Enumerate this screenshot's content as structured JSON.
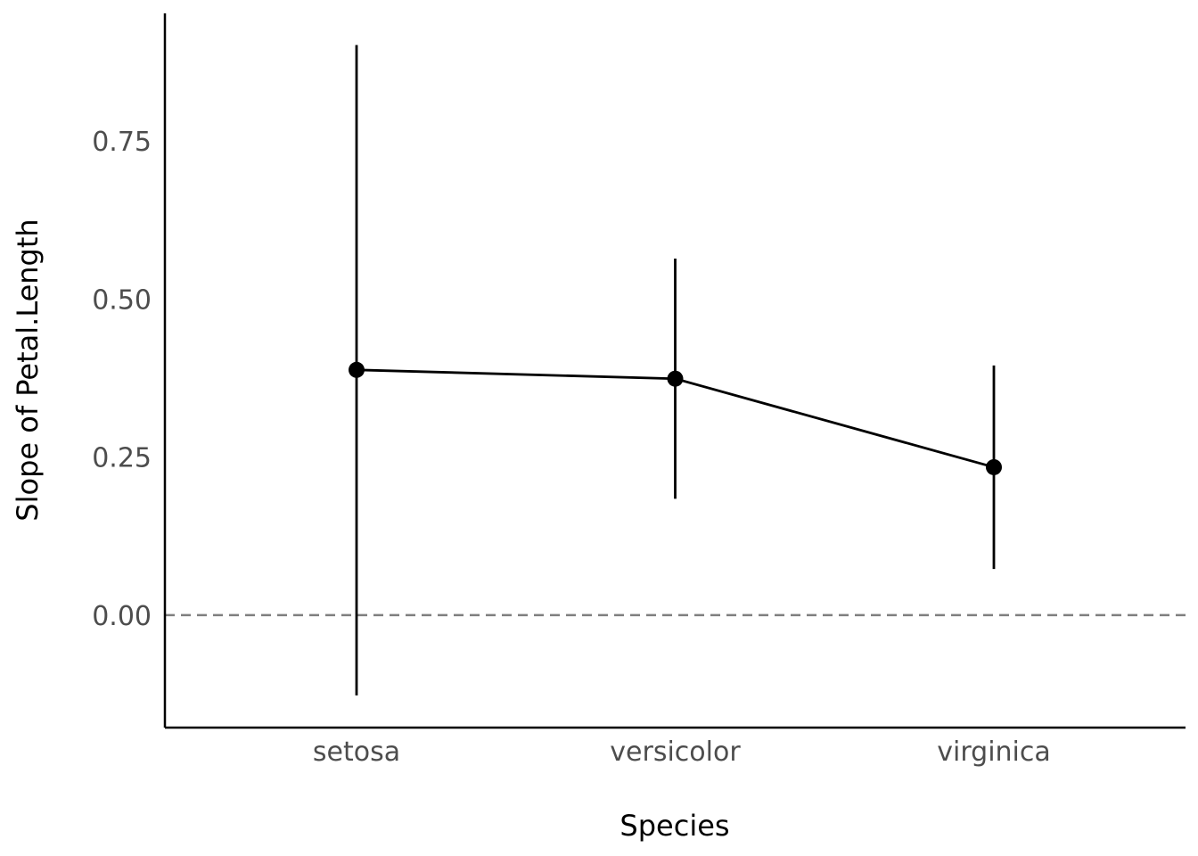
{
  "chart_data": {
    "type": "scatter",
    "xlabel": "Species",
    "ylabel": "Slope of Petal.Length",
    "categories": [
      "setosa",
      "versicolor",
      "virginica"
    ],
    "series": [
      {
        "values": [
          0.388,
          0.374,
          0.234
        ],
        "ci_low": [
          -0.127,
          0.184,
          0.073
        ],
        "ci_high": [
          0.902,
          0.564,
          0.395
        ]
      }
    ],
    "reference_line": 0.0,
    "yticks": [
      0.0,
      0.25,
      0.5,
      0.75
    ],
    "ytick_labels": [
      "0.00",
      "0.25",
      "0.50",
      "0.75"
    ],
    "ylim": [
      -0.178,
      0.952
    ],
    "grid": false,
    "colors": {
      "points": "#000000",
      "reference": "#7f7f7f",
      "tick_text": "#4d4d4d"
    }
  }
}
